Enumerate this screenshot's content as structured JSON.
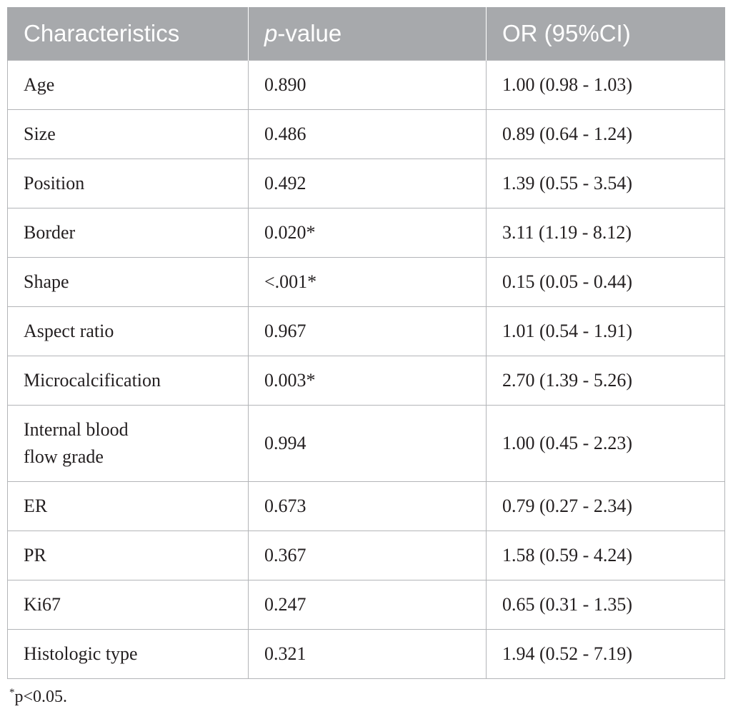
{
  "table": {
    "headers": {
      "col1": "Characteristics",
      "col2_italic": "p",
      "col2_rest": "-value",
      "col3": "OR (95%CI)"
    },
    "rows": [
      {
        "characteristic": "Age",
        "p_value": "0.890",
        "or_ci": "1.00 (0.98 - 1.03)"
      },
      {
        "characteristic": "Size",
        "p_value": "0.486",
        "or_ci": "0.89 (0.64 - 1.24)"
      },
      {
        "characteristic": "Position",
        "p_value": "0.492",
        "or_ci": "1.39 (0.55 - 3.54)"
      },
      {
        "characteristic": "Border",
        "p_value": "0.020*",
        "or_ci": "3.11 (1.19 - 8.12)"
      },
      {
        "characteristic": "Shape",
        "p_value": "<.001*",
        "or_ci": "0.15 (0.05 - 0.44)"
      },
      {
        "characteristic": "Aspect ratio",
        "p_value": "0.967",
        "or_ci": "1.01 (0.54 - 1.91)"
      },
      {
        "characteristic": "Microcalcification",
        "p_value": "0.003*",
        "or_ci": "2.70 (1.39 - 5.26)"
      },
      {
        "characteristic_line1": "Internal blood",
        "characteristic_line2": "flow grade",
        "p_value": "0.994",
        "or_ci": "1.00 (0.45 - 2.23)"
      },
      {
        "characteristic": "ER",
        "p_value": "0.673",
        "or_ci": "0.79 (0.27 - 2.34)"
      },
      {
        "characteristic": "PR",
        "p_value": "0.367",
        "or_ci": "1.58 (0.59 - 4.24)"
      },
      {
        "characteristic": "Ki67",
        "p_value": "0.247",
        "or_ci": "0.65 (0.31 - 1.35)"
      },
      {
        "characteristic": "Histologic type",
        "p_value": "0.321",
        "or_ci": "1.94 (0.52 - 7.19)"
      }
    ]
  },
  "footnote": {
    "marker": "*",
    "text": "p<0.05."
  }
}
